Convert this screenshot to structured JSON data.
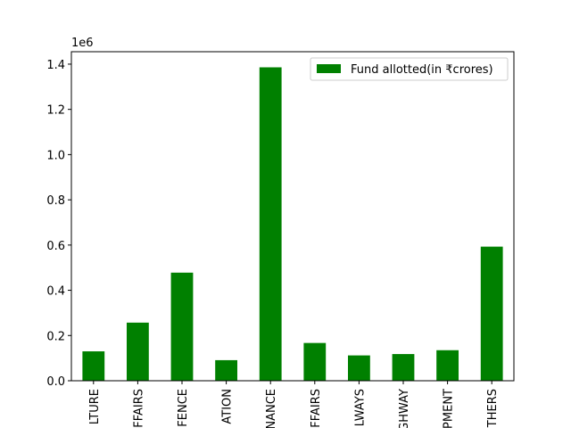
{
  "chart_data": {
    "type": "bar",
    "categories": [
      "LTURE",
      "FFAIRS",
      "FENCE",
      "ATION",
      "NANCE",
      "FFAIRS",
      "LWAYS",
      "GHWAY",
      "PMENT",
      "THERS"
    ],
    "series": [
      {
        "name": "Fund allotted(in ₹crores)",
        "color": "#008000",
        "values": [
          130000,
          257000,
          478000,
          91000,
          1386000,
          167000,
          112000,
          118000,
          135000,
          593000
        ]
      }
    ],
    "yticks": [
      "0.0",
      "0.2",
      "0.4",
      "0.6",
      "0.8",
      "1.0",
      "1.2",
      "1.4"
    ],
    "ytick_values": [
      0,
      200000,
      400000,
      600000,
      800000,
      1000000,
      1200000,
      1400000
    ],
    "y_offset_label": "1e6",
    "ylim": [
      0,
      1455000
    ],
    "legend_position": "top-right",
    "grid": false
  }
}
